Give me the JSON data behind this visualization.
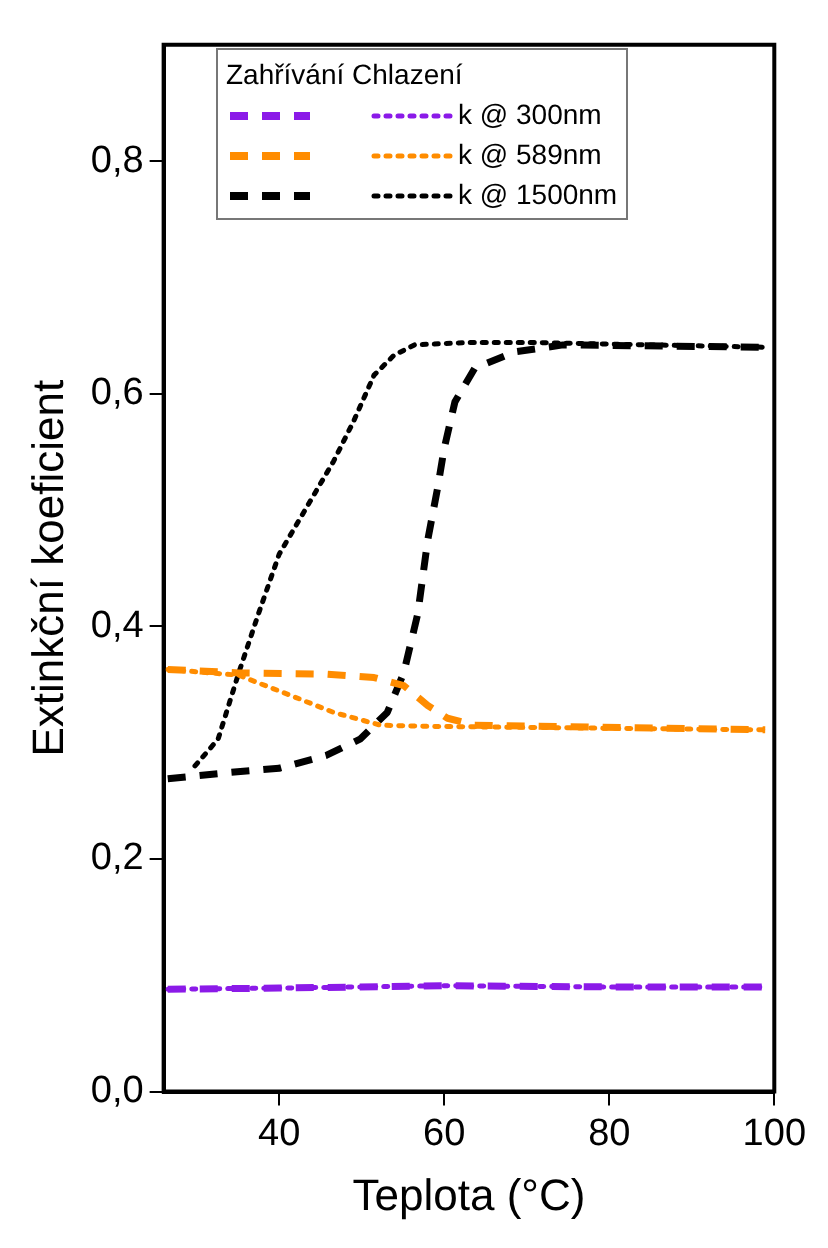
{
  "chart_data": {
    "type": "line",
    "xlabel": "Teplota (°C)",
    "ylabel": "Extinkční koeficient",
    "legend_title": "Zahřívání Chlazení",
    "legend": "top left",
    "grid": false,
    "marker": "none",
    "xlim": [
      26,
      100
    ],
    "xticks": [
      40,
      60,
      80,
      100
    ],
    "ylim": [
      0,
      0.9
    ],
    "yticks": [
      {
        "value": 0,
        "label": "0,0"
      },
      {
        "value": 0.2,
        "label": "0,2"
      },
      {
        "value": 0.4,
        "label": "0,4"
      },
      {
        "value": 0.6,
        "label": "0,6"
      },
      {
        "value": 0.8,
        "label": "0,8"
      }
    ],
    "series": [
      {
        "color": "#8b1ae8",
        "line_style": "dashed",
        "x": [
          26.5,
          40,
          60,
          80,
          98.9
        ],
        "values": [
          0.088,
          0.089,
          0.091,
          0.09,
          0.09
        ]
      },
      {
        "name": "k @ 300nm",
        "color": "#8b1ae8",
        "line_style": "dotted",
        "x": [
          26.5,
          40,
          60,
          80,
          98.9
        ],
        "values": [
          0.088,
          0.089,
          0.091,
          0.09,
          0.09
        ]
      },
      {
        "color": "#ff8c00",
        "line_style": "dashed",
        "x": [
          26.5,
          35.1,
          45.7,
          51.5,
          55.1,
          58.0,
          60.4,
          63.7,
          98.9
        ],
        "values": [
          0.363,
          0.36,
          0.359,
          0.356,
          0.349,
          0.332,
          0.321,
          0.315,
          0.311
        ]
      },
      {
        "name": "k @ 589nm",
        "color": "#ff8c00",
        "line_style": "dotted",
        "x": [
          26.5,
          35.1,
          41.6,
          46.6,
          52.3,
          58.0,
          98.9
        ],
        "values": [
          0.363,
          0.358,
          0.34,
          0.326,
          0.315,
          0.314,
          0.311
        ]
      },
      {
        "color": "#000000",
        "line_style": "dashed",
        "x": [
          26.5,
          33.4,
          40,
          45.7,
          49.8,
          53.1,
          55.1,
          56.8,
          58.0,
          59.2,
          60.0,
          61.3,
          63.7,
          68.6,
          74.4,
          98.9
        ],
        "values": [
          0.269,
          0.274,
          0.278,
          0.289,
          0.303,
          0.326,
          0.36,
          0.411,
          0.474,
          0.519,
          0.553,
          0.593,
          0.622,
          0.636,
          0.642,
          0.64
        ]
      },
      {
        "name": "k @ 1500nm",
        "color": "#000000",
        "line_style": "dotted",
        "x": [
          29.8,
          32.6,
          35.1,
          37.5,
          40,
          43.3,
          46.6,
          49.0,
          51.5,
          53.9,
          56.4,
          62.9,
          71.1,
          98.9
        ],
        "values": [
          0.28,
          0.303,
          0.36,
          0.411,
          0.462,
          0.502,
          0.542,
          0.576,
          0.616,
          0.633,
          0.642,
          0.644,
          0.644,
          0.64
        ]
      }
    ]
  }
}
